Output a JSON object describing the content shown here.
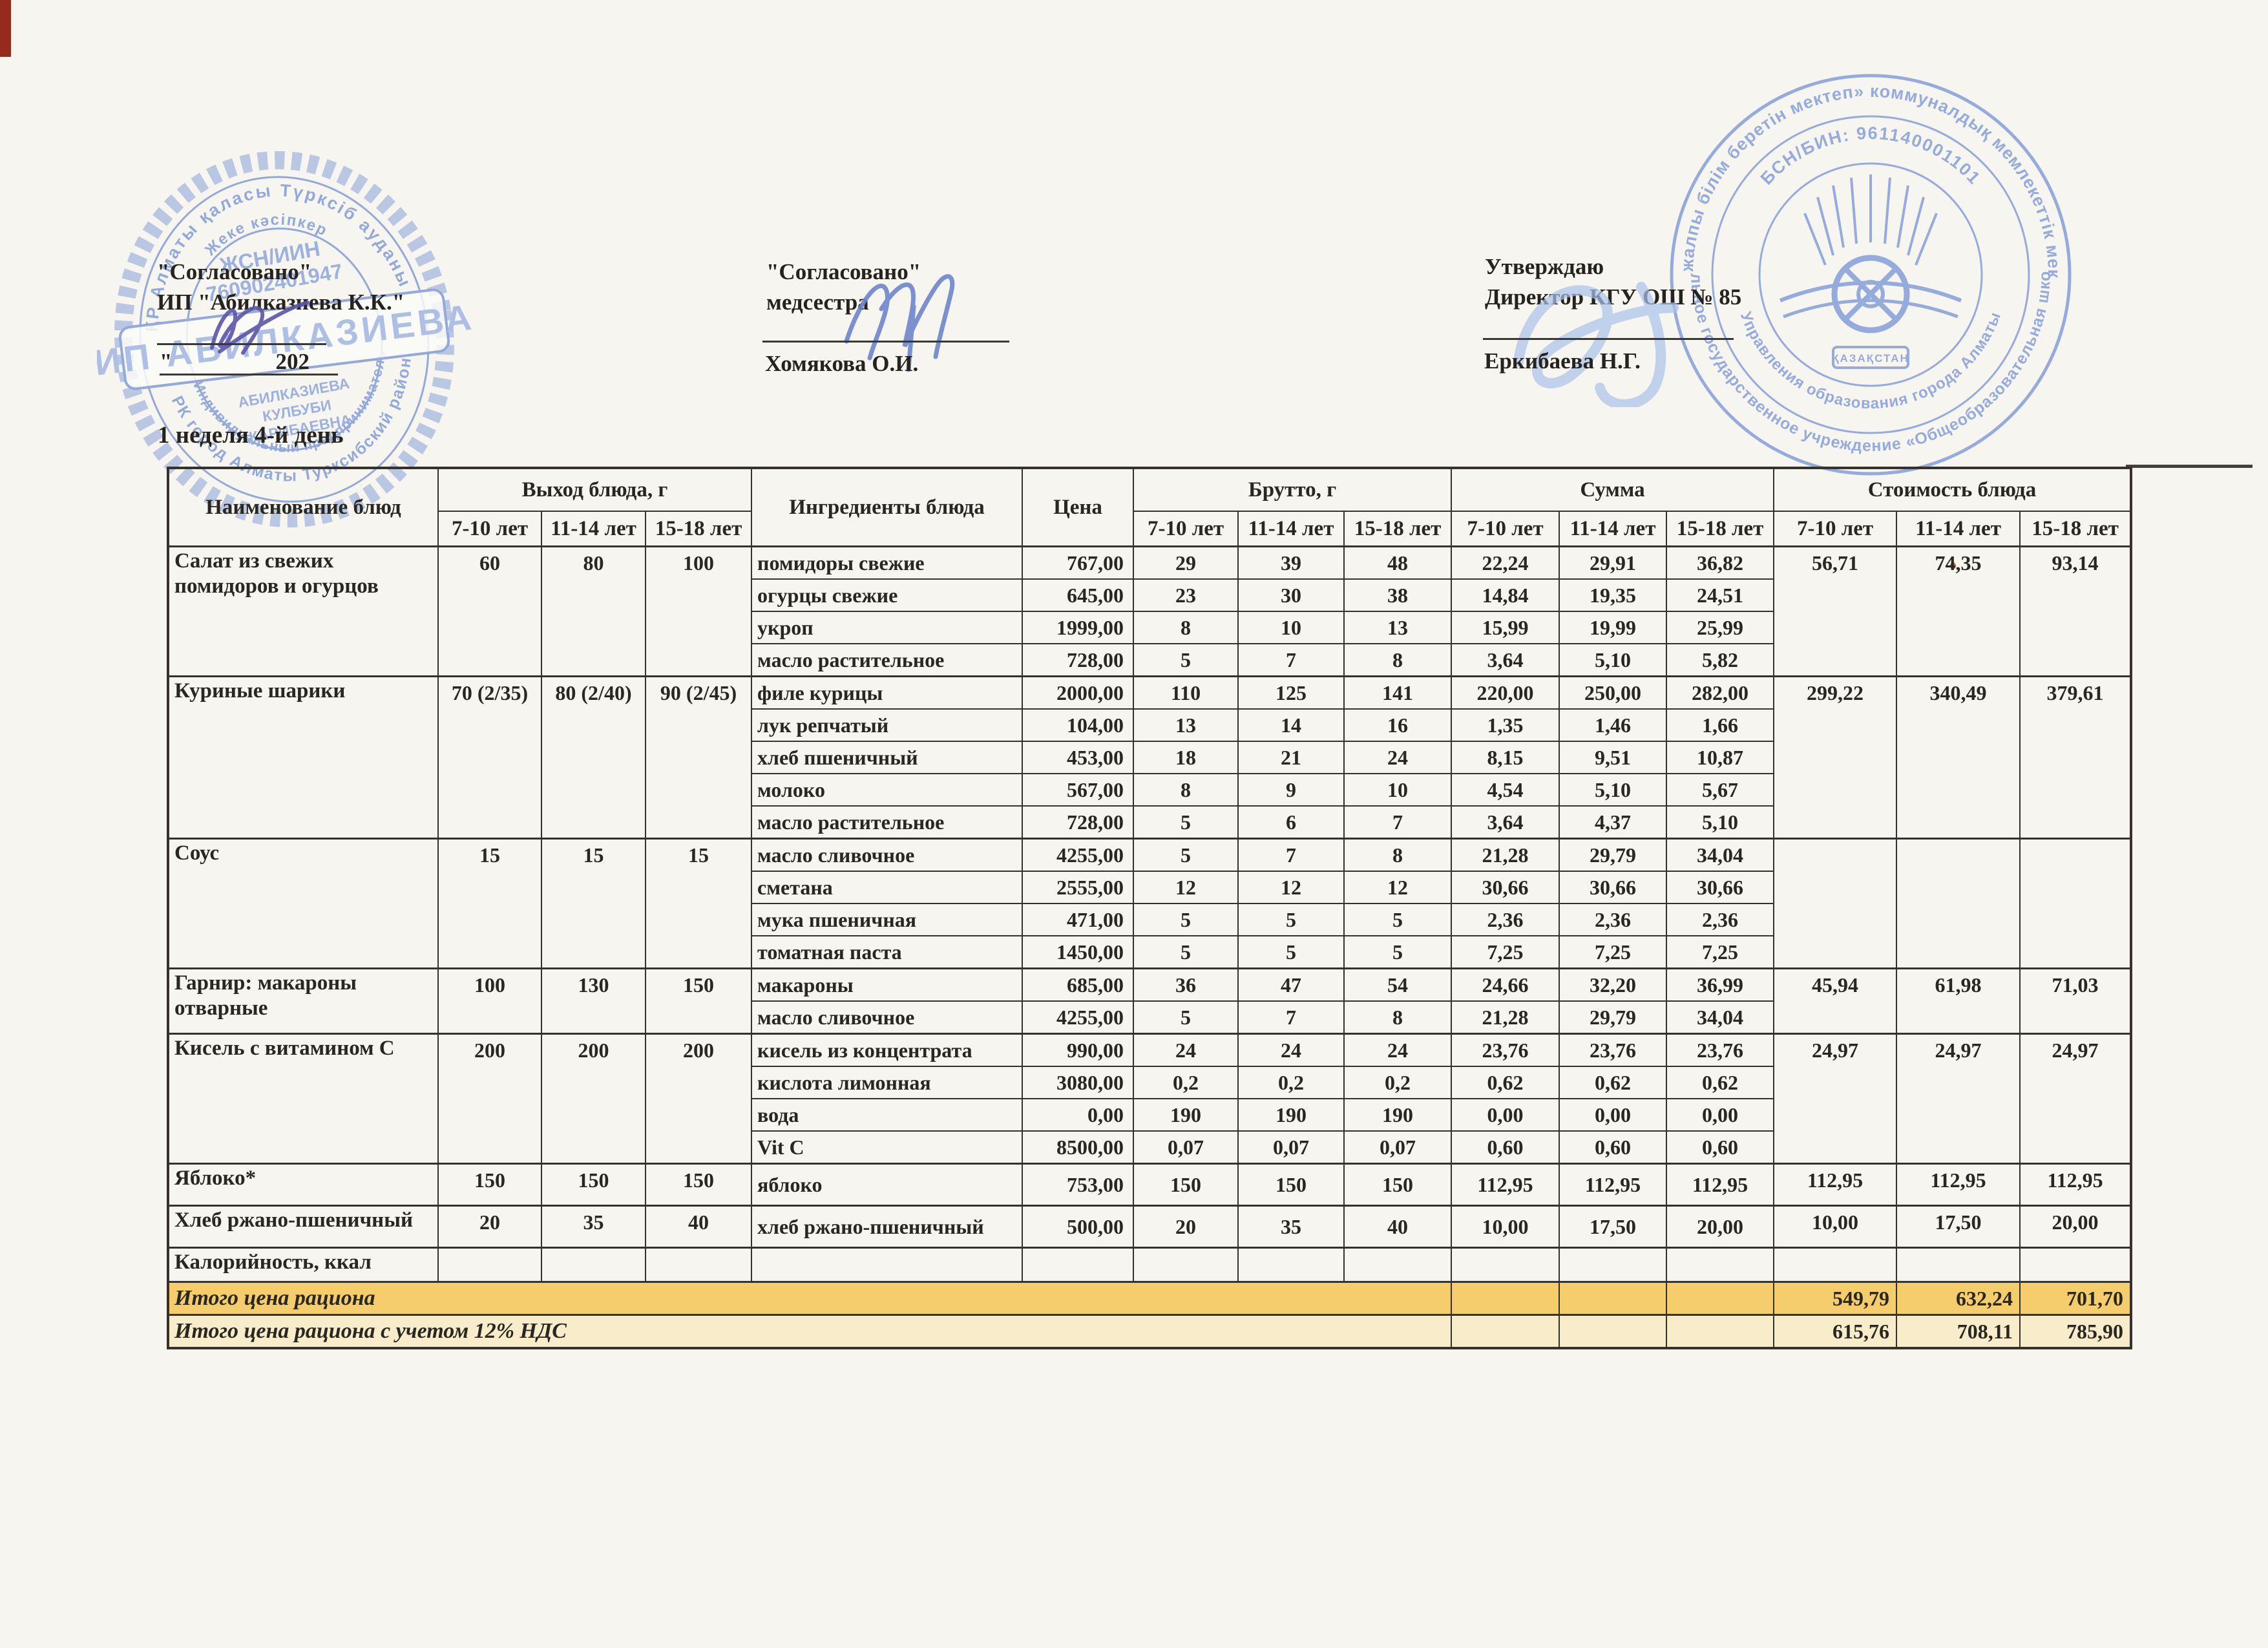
{
  "title": "1 неделя 4-й день",
  "approvals": {
    "left": {
      "line1": "\"Согласовано\"",
      "line2": "ИП \"Абилказиева К.К.\"",
      "quote": "\"",
      "year": "202"
    },
    "middle": {
      "line1": "\"Согласовано\"",
      "line2": "медсестра",
      "name": "Хомякова О.И."
    },
    "right": {
      "line1": "Утверждаю",
      "line2": "Директор КГУ ОШ № 85",
      "name": "Еркибаева Н.Г."
    }
  },
  "left_stamp": {
    "outer_top": "ҚР Алматы қаласы Түрксіб ауданы",
    "inner_top": "Жеке кәсіпкер",
    "outer_bottom": "РК город Алматы Турксибский район",
    "inner_bottom": "Индивидуальный предприниматель",
    "id_label": "ЖСН/ИИН",
    "id_number": "760902401947",
    "center": "ИП АБИЛКАЗИЕВА",
    "owner1": "АБИЛКАЗИЕВА",
    "owner2": "КУЛБУБИ",
    "owner3": "КАРИБАЕВНА"
  },
  "right_stamp": {
    "outer_top": "«№85 жалпы білім беретін мектеп» коммуналдық мемлекеттік мекемесі",
    "outer_bottom": "Коммунальное государственное учреждение «Общеобразовательная школа №85»",
    "inner_top": "БСН/БИН: 961140001101",
    "inner_bottom": "Управления образования города Алматы",
    "banner": "ҚАЗАҚСТАН"
  },
  "colors": {
    "stamp_blue": "#7d99d6",
    "ink_blue": "#6e86cc",
    "ink_purple": "#5c55a8",
    "highlight_strong": "#f5cd6d",
    "highlight_soft": "#f8ecca",
    "table_line": "#36322b"
  },
  "table": {
    "headers": {
      "name": "Наименование блюд",
      "output": "Выход блюда, г",
      "ingredients": "Ингредиенты блюда",
      "price": "Цена",
      "brutto": "Брутто, г",
      "summa": "Сумма",
      "cost": "Стоимость блюда"
    },
    "age_groups": [
      "7-10 лет",
      "11-14 лет",
      "15-18 лет"
    ],
    "dishes": [
      {
        "name": "Салат из свежих помидоров и огурцов",
        "output": [
          "60",
          "80",
          "100"
        ],
        "cost": [
          "56,71",
          "74,35",
          "93,14"
        ],
        "ingredients": [
          {
            "name": "помидоры свежие",
            "price": "767,00",
            "brutto": [
              "29",
              "39",
              "48"
            ],
            "summa": [
              "22,24",
              "29,91",
              "36,82"
            ]
          },
          {
            "name": "огурцы свежие",
            "price": "645,00",
            "brutto": [
              "23",
              "30",
              "38"
            ],
            "summa": [
              "14,84",
              "19,35",
              "24,51"
            ]
          },
          {
            "name": "укроп",
            "price": "1999,00",
            "brutto": [
              "8",
              "10",
              "13"
            ],
            "summa": [
              "15,99",
              "19,99",
              "25,99"
            ]
          },
          {
            "name": "масло растительное",
            "price": "728,00",
            "brutto": [
              "5",
              "7",
              "8"
            ],
            "summa": [
              "3,64",
              "5,10",
              "5,82"
            ]
          }
        ]
      },
      {
        "name": "Куриные шарики",
        "output": [
          "70 (2/35)",
          "80 (2/40)",
          "90 (2/45)"
        ],
        "cost": [
          "299,22",
          "340,49",
          "379,61"
        ],
        "ingredients": [
          {
            "name": "филе курицы",
            "price": "2000,00",
            "brutto": [
              "110",
              "125",
              "141"
            ],
            "summa": [
              "220,00",
              "250,00",
              "282,00"
            ]
          },
          {
            "name": "лук репчатый",
            "price": "104,00",
            "brutto": [
              "13",
              "14",
              "16"
            ],
            "summa": [
              "1,35",
              "1,46",
              "1,66"
            ]
          },
          {
            "name": "хлеб пшеничный",
            "price": "453,00",
            "brutto": [
              "18",
              "21",
              "24"
            ],
            "summa": [
              "8,15",
              "9,51",
              "10,87"
            ]
          },
          {
            "name": "молоко",
            "price": "567,00",
            "brutto": [
              "8",
              "9",
              "10"
            ],
            "summa": [
              "4,54",
              "5,10",
              "5,67"
            ]
          },
          {
            "name": "масло растительное",
            "price": "728,00",
            "brutto": [
              "5",
              "6",
              "7"
            ],
            "summa": [
              "3,64",
              "4,37",
              "5,10"
            ]
          }
        ]
      },
      {
        "name": "Соус",
        "output": [
          "15",
          "15",
          "15"
        ],
        "cost": [
          "",
          "",
          ""
        ],
        "ingredients": [
          {
            "name": "масло сливочное",
            "price": "4255,00",
            "brutto": [
              "5",
              "7",
              "8"
            ],
            "summa": [
              "21,28",
              "29,79",
              "34,04"
            ]
          },
          {
            "name": "сметана",
            "price": "2555,00",
            "brutto": [
              "12",
              "12",
              "12"
            ],
            "summa": [
              "30,66",
              "30,66",
              "30,66"
            ]
          },
          {
            "name": "мука пшеничная",
            "price": "471,00",
            "brutto": [
              "5",
              "5",
              "5"
            ],
            "summa": [
              "2,36",
              "2,36",
              "2,36"
            ]
          },
          {
            "name": "томатная паста",
            "price": "1450,00",
            "brutto": [
              "5",
              "5",
              "5"
            ],
            "summa": [
              "7,25",
              "7,25",
              "7,25"
            ]
          }
        ]
      },
      {
        "name": "Гарнир: макароны отварные",
        "output": [
          "100",
          "130",
          "150"
        ],
        "cost": [
          "45,94",
          "61,98",
          "71,03"
        ],
        "ingredients": [
          {
            "name": "макароны",
            "price": "685,00",
            "brutto": [
              "36",
              "47",
              "54"
            ],
            "summa": [
              "24,66",
              "32,20",
              "36,99"
            ]
          },
          {
            "name": "масло сливочное",
            "price": "4255,00",
            "brutto": [
              "5",
              "7",
              "8"
            ],
            "summa": [
              "21,28",
              "29,79",
              "34,04"
            ]
          }
        ]
      },
      {
        "name": "Кисель с витамином С",
        "output": [
          "200",
          "200",
          "200"
        ],
        "cost": [
          "24,97",
          "24,97",
          "24,97"
        ],
        "ingredients": [
          {
            "name": "кисель из концентрата",
            "price": "990,00",
            "brutto": [
              "24",
              "24",
              "24"
            ],
            "summa": [
              "23,76",
              "23,76",
              "23,76"
            ]
          },
          {
            "name": "кислота лимонная",
            "price": "3080,00",
            "brutto": [
              "0,2",
              "0,2",
              "0,2"
            ],
            "summa": [
              "0,62",
              "0,62",
              "0,62"
            ]
          },
          {
            "name": "вода",
            "price": "0,00",
            "brutto": [
              "190",
              "190",
              "190"
            ],
            "summa": [
              "0,00",
              "0,00",
              "0,00"
            ]
          },
          {
            "name": "Vit C",
            "price": "8500,00",
            "brutto": [
              "0,07",
              "0,07",
              "0,07"
            ],
            "summa": [
              "0,60",
              "0,60",
              "0,60"
            ]
          }
        ]
      },
      {
        "name": "Яблоко*",
        "output": [
          "150",
          "150",
          "150"
        ],
        "cost": [
          "112,95",
          "112,95",
          "112,95"
        ],
        "ingredients": [
          {
            "name": "яблоко",
            "price": "753,00",
            "brutto": [
              "150",
              "150",
              "150"
            ],
            "summa": [
              "112,95",
              "112,95",
              "112,95"
            ]
          }
        ]
      },
      {
        "name": "Хлеб ржано-пшеничный",
        "output": [
          "20",
          "35",
          "40"
        ],
        "cost": [
          "10,00",
          "17,50",
          "20,00"
        ],
        "ingredients": [
          {
            "name": "хлеб ржано-пшеничный",
            "price": "500,00",
            "brutto": [
              "20",
              "35",
              "40"
            ],
            "summa": [
              "10,00",
              "17,50",
              "20,00"
            ]
          }
        ]
      }
    ],
    "footer": {
      "calories_label": "Калорийность, ккал",
      "total_label": "Итого цена рациона",
      "total_values": [
        "549,79",
        "632,24",
        "701,70"
      ],
      "total_vat_label": "Итого цена рациона с учетом 12% НДС",
      "total_vat_values": [
        "615,76",
        "708,11",
        "785,90"
      ]
    }
  }
}
